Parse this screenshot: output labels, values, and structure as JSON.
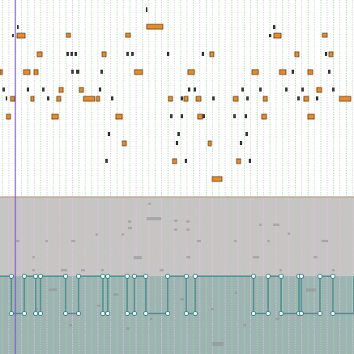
{
  "colors": {
    "background": "#ffffff",
    "grid_green": "#9ed99e",
    "grid_gray": "#cfcfcf",
    "note_fill": "#e88a2a",
    "note_stroke": "#5a3a12",
    "note_marker": "#3a3a3a",
    "playhead": "#7a4ad8",
    "lane_top_bg": "#c8c4c6",
    "lane_bottom_bg": "#9eb4b2",
    "lane_border": "#b58a7a",
    "automation_line": "#3a8a8a",
    "automation_node_fill": "#ffffff",
    "ghost_marks": "#8f8f8f"
  },
  "icons": {
    "automation_node": "circle-handle-icon",
    "note": "note-block-icon"
  }
}
